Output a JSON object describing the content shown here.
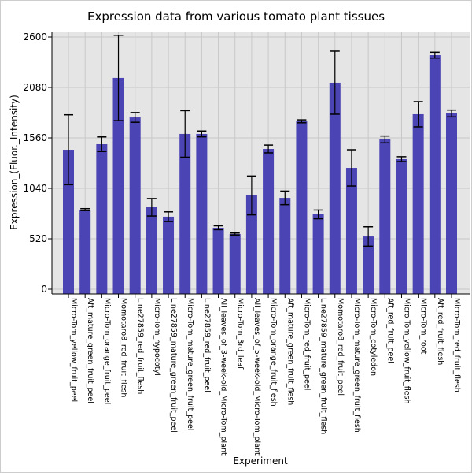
{
  "chart_data": {
    "type": "bar",
    "title": "Expression data from various tomato plant tissues",
    "xlabel": "Experiment",
    "ylabel": "Expression_(Fluor._Intensity)",
    "ylim": [
      0,
      2600
    ],
    "yticks": [
      0,
      520,
      1040,
      1560,
      2080,
      2600
    ],
    "grid": true,
    "bar_color": "#4b44b4",
    "background_color": "#e5e5e5",
    "categories": [
      "Micro-Tom_yellow_fruit_peel",
      "Aft_mature_green_fruit_peel",
      "Micro-Tom_orange_fruit_peel",
      "Momotaro8_red_fruit_flesh",
      "Line27859_red_fruit_flesh",
      "Micro-Tom_hypocotyl",
      "Line27859_mature_green_fruit_peel",
      "Micro-Tom_mature_green_fruit_peel",
      "Line27859_red_fruit_peel",
      "All_leaves_of_3-week-old_Micro-Tom_plant",
      "Micro-Tom_3rd_leaf",
      "All_leaves_of_5-week-old_Micro-Tom_plant",
      "Micro-Tom_orange_fruit_flesh",
      "Aft_mature_green_fruit_flesh",
      "Micro-Tom_red_fruit_peel",
      "Line27859_mature_green_fruit_flesh",
      "Momotaro8_red_fruit_peel",
      "Micro-Tom_mature_green_fruit_flesh",
      "Micro-Tom_cotyledon",
      "Aft_red_fruit_peel",
      "Micro-Tom_yellow_fruit_flesh",
      "Micro-Tom_root",
      "Aft_red_fruit_flesh",
      "Micro-Tom_red_fruit_flesh"
    ],
    "values": [
      1438,
      821,
      1495,
      2178,
      1771,
      845,
      748,
      1601,
      1601,
      634,
      569,
      967,
      1446,
      942,
      1731,
      772,
      2129,
      1251,
      544,
      1544,
      1341,
      1804,
      2413,
      1812
    ],
    "errors": [
      360,
      10,
      75,
      440,
      50,
      90,
      50,
      240,
      30,
      20,
      10,
      200,
      40,
      70,
      15,
      45,
      325,
      187,
      100,
      35,
      25,
      130,
      30,
      35
    ]
  }
}
